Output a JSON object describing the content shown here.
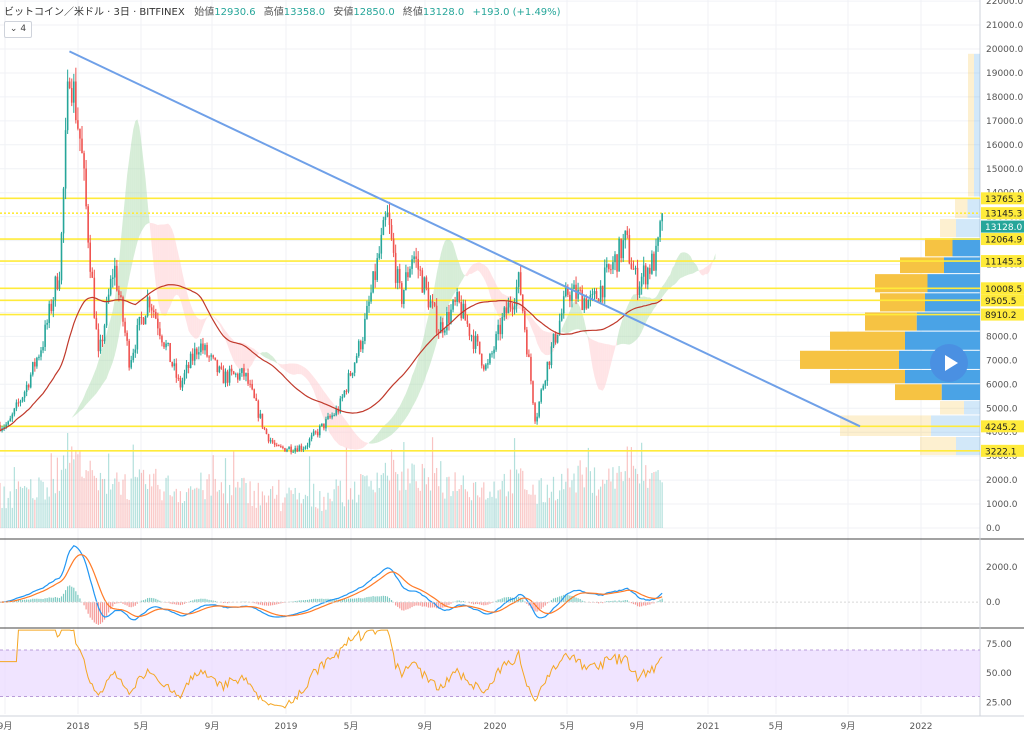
{
  "legend": {
    "symbol": "ビットコイン／米ドル · 3日 · BITFINEX",
    "open_label": "始値",
    "open_value": "12930.6",
    "high_label": "高値",
    "high_value": "13358.0",
    "low_label": "安値",
    "low_value": "12850.0",
    "close_label": "終値",
    "close_value": "13128.0",
    "change": "+193.0 (+1.49%)"
  },
  "controls": {
    "collapse_label": "⌄ 4",
    "play_icon": "play-icon"
  },
  "colors": {
    "up": "#26a69a",
    "down": "#ef5350",
    "level_line": "#ffeb3b",
    "trend_line": "#6fa0e8",
    "ma_line": "#c0392b",
    "cloud_up": "#a5d6a7",
    "cloud_down": "#ffcdd2",
    "rsi_band": "#e9d8ff",
    "rsi_line": "#f5a623",
    "macd_line": "#2196f3",
    "signal_line": "#ff7b28",
    "vp_up": "#f6c343",
    "vp_down": "#4aa3e6",
    "price_tag": "#26a69a"
  },
  "chart_data": [
    {
      "type": "line",
      "title": "ビットコイン／米ドル · 3日 · BITFINEX",
      "x_tick_labels": [
        "9月",
        "2018",
        "5月",
        "9月",
        "2019",
        "5月",
        "9月",
        "2020",
        "5月",
        "9月",
        "2021",
        "5月",
        "9月",
        "2022"
      ],
      "y_tick_labels": [
        "0.0",
        "1000.0",
        "2000.0",
        "3000.0",
        "4000.0",
        "5000.0",
        "6000.0",
        "7000.0",
        "8000.0",
        "9000.0",
        "10000.0",
        "11000.0",
        "12000.0",
        "13000.0",
        "14000.0",
        "15000.0",
        "16000.0",
        "17000.0",
        "18000.0",
        "19000.0",
        "20000.0",
        "21000.0",
        "22000.0"
      ],
      "ylim": [
        0,
        22000
      ],
      "horizontal_levels": [
        "13765.3",
        "13145.3",
        "12064.9",
        "11145.5",
        "10008.5",
        "9505.5",
        "8910.2",
        "4245.2",
        "3222.1"
      ],
      "last_price": "13128.0",
      "series": [
        {
          "x": [
            "2017-09",
            "2017-10",
            "2017-11",
            "2017-12-01",
            "2017-12-17",
            "2018-01-06",
            "2018-02-06",
            "2018-03-05",
            "2018-04-01",
            "2018-05-05",
            "2018-06-28",
            "2018-08-01",
            "2018-09-10",
            "2018-10-20",
            "2018-11-25",
            "2018-12-15",
            "2019-02-01",
            "2019-04-03",
            "2019-05-14",
            "2019-06-26",
            "2019-07-20",
            "2019-08-10",
            "2019-09-25",
            "2019-10-28",
            "2019-12-18",
            "2020-01-15",
            "2020-02-13",
            "2020-03-12",
            "2020-03-30",
            "2020-05-08",
            "2020-06-20",
            "2020-07-28",
            "2020-08-17",
            "2020-09-05",
            "2020-10-10",
            "2020-10-21"
          ],
          "values": [
            4300,
            5800,
            7800,
            11000,
            19500,
            16000,
            7000,
            11000,
            7000,
            9700,
            5900,
            7700,
            6300,
            6400,
            4000,
            3300,
            3400,
            5000,
            8000,
            13000,
            9500,
            11500,
            8300,
            9400,
            6600,
            8700,
            10300,
            4500,
            6600,
            9900,
            9400,
            11100,
            12000,
            10200,
            11300,
            13128
          ]
        },
        {
          "name": "trend",
          "x": [
            "2017-12-17",
            "2021-10-01"
          ],
          "values": [
            19900,
            4245
          ]
        }
      ]
    },
    {
      "type": "line",
      "y_tick_labels": [
        "0.0",
        "2000.0"
      ],
      "ylim": [
        -1200,
        3000
      ]
    },
    {
      "type": "line",
      "y_tick_labels": [
        "25.00",
        "50.00",
        "75.00"
      ],
      "ylim": [
        15,
        88
      ],
      "band": [
        30,
        70
      ]
    }
  ]
}
